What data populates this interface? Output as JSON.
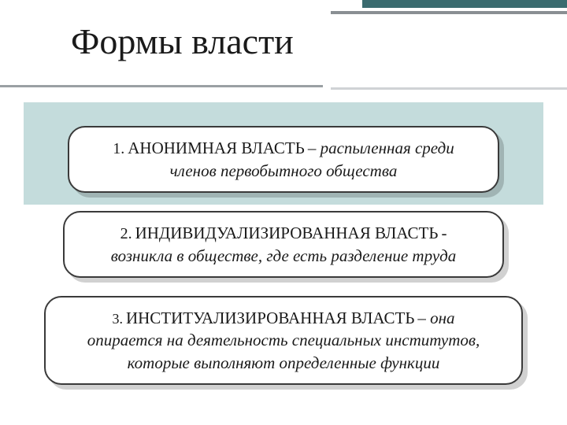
{
  "title": "Формы власти",
  "colors": {
    "background": "#ffffff",
    "accent_teal": "#3a6b6f",
    "band_teal": "#c4dcdc",
    "divider_dark": "#9aa0a3",
    "divider_light": "#d0d3d5",
    "top_gray": "#8a8f93",
    "text": "#1a1a1a",
    "card_bg": "#ffffff",
    "card_border": "#3a3a3a",
    "card_shadow": "rgba(0,0,0,0.18)"
  },
  "typography": {
    "title_fontsize": 46,
    "card_heading_fontsize": 21,
    "card_desc_fontsize": 21,
    "card_desc_style": "italic",
    "font_family": "Georgia, Times New Roman, serif"
  },
  "cards": [
    {
      "num": "1.",
      "heading": "АНОНИМНАЯ ВЛАСТЬ",
      "sep": " – ",
      "desc_line1": "распыленная среди",
      "desc_line2": "членов первобытного общества"
    },
    {
      "num": "2.",
      "heading": "ИНДИВИДУАЛИЗИРОВАННАЯ  ВЛАСТЬ",
      "sep": " - ",
      "desc_line1": "",
      "desc_line2": "возникла в обществе, где есть разделение труда"
    },
    {
      "num": "3.",
      "heading": "ИНСТИТУАЛИЗИРОВАННАЯ ВЛАСТЬ",
      "sep": " – ",
      "desc_line1": "она",
      "desc_line2": "опирается на деятельность специальных институтов, которые выполняют определенные функции"
    }
  ]
}
